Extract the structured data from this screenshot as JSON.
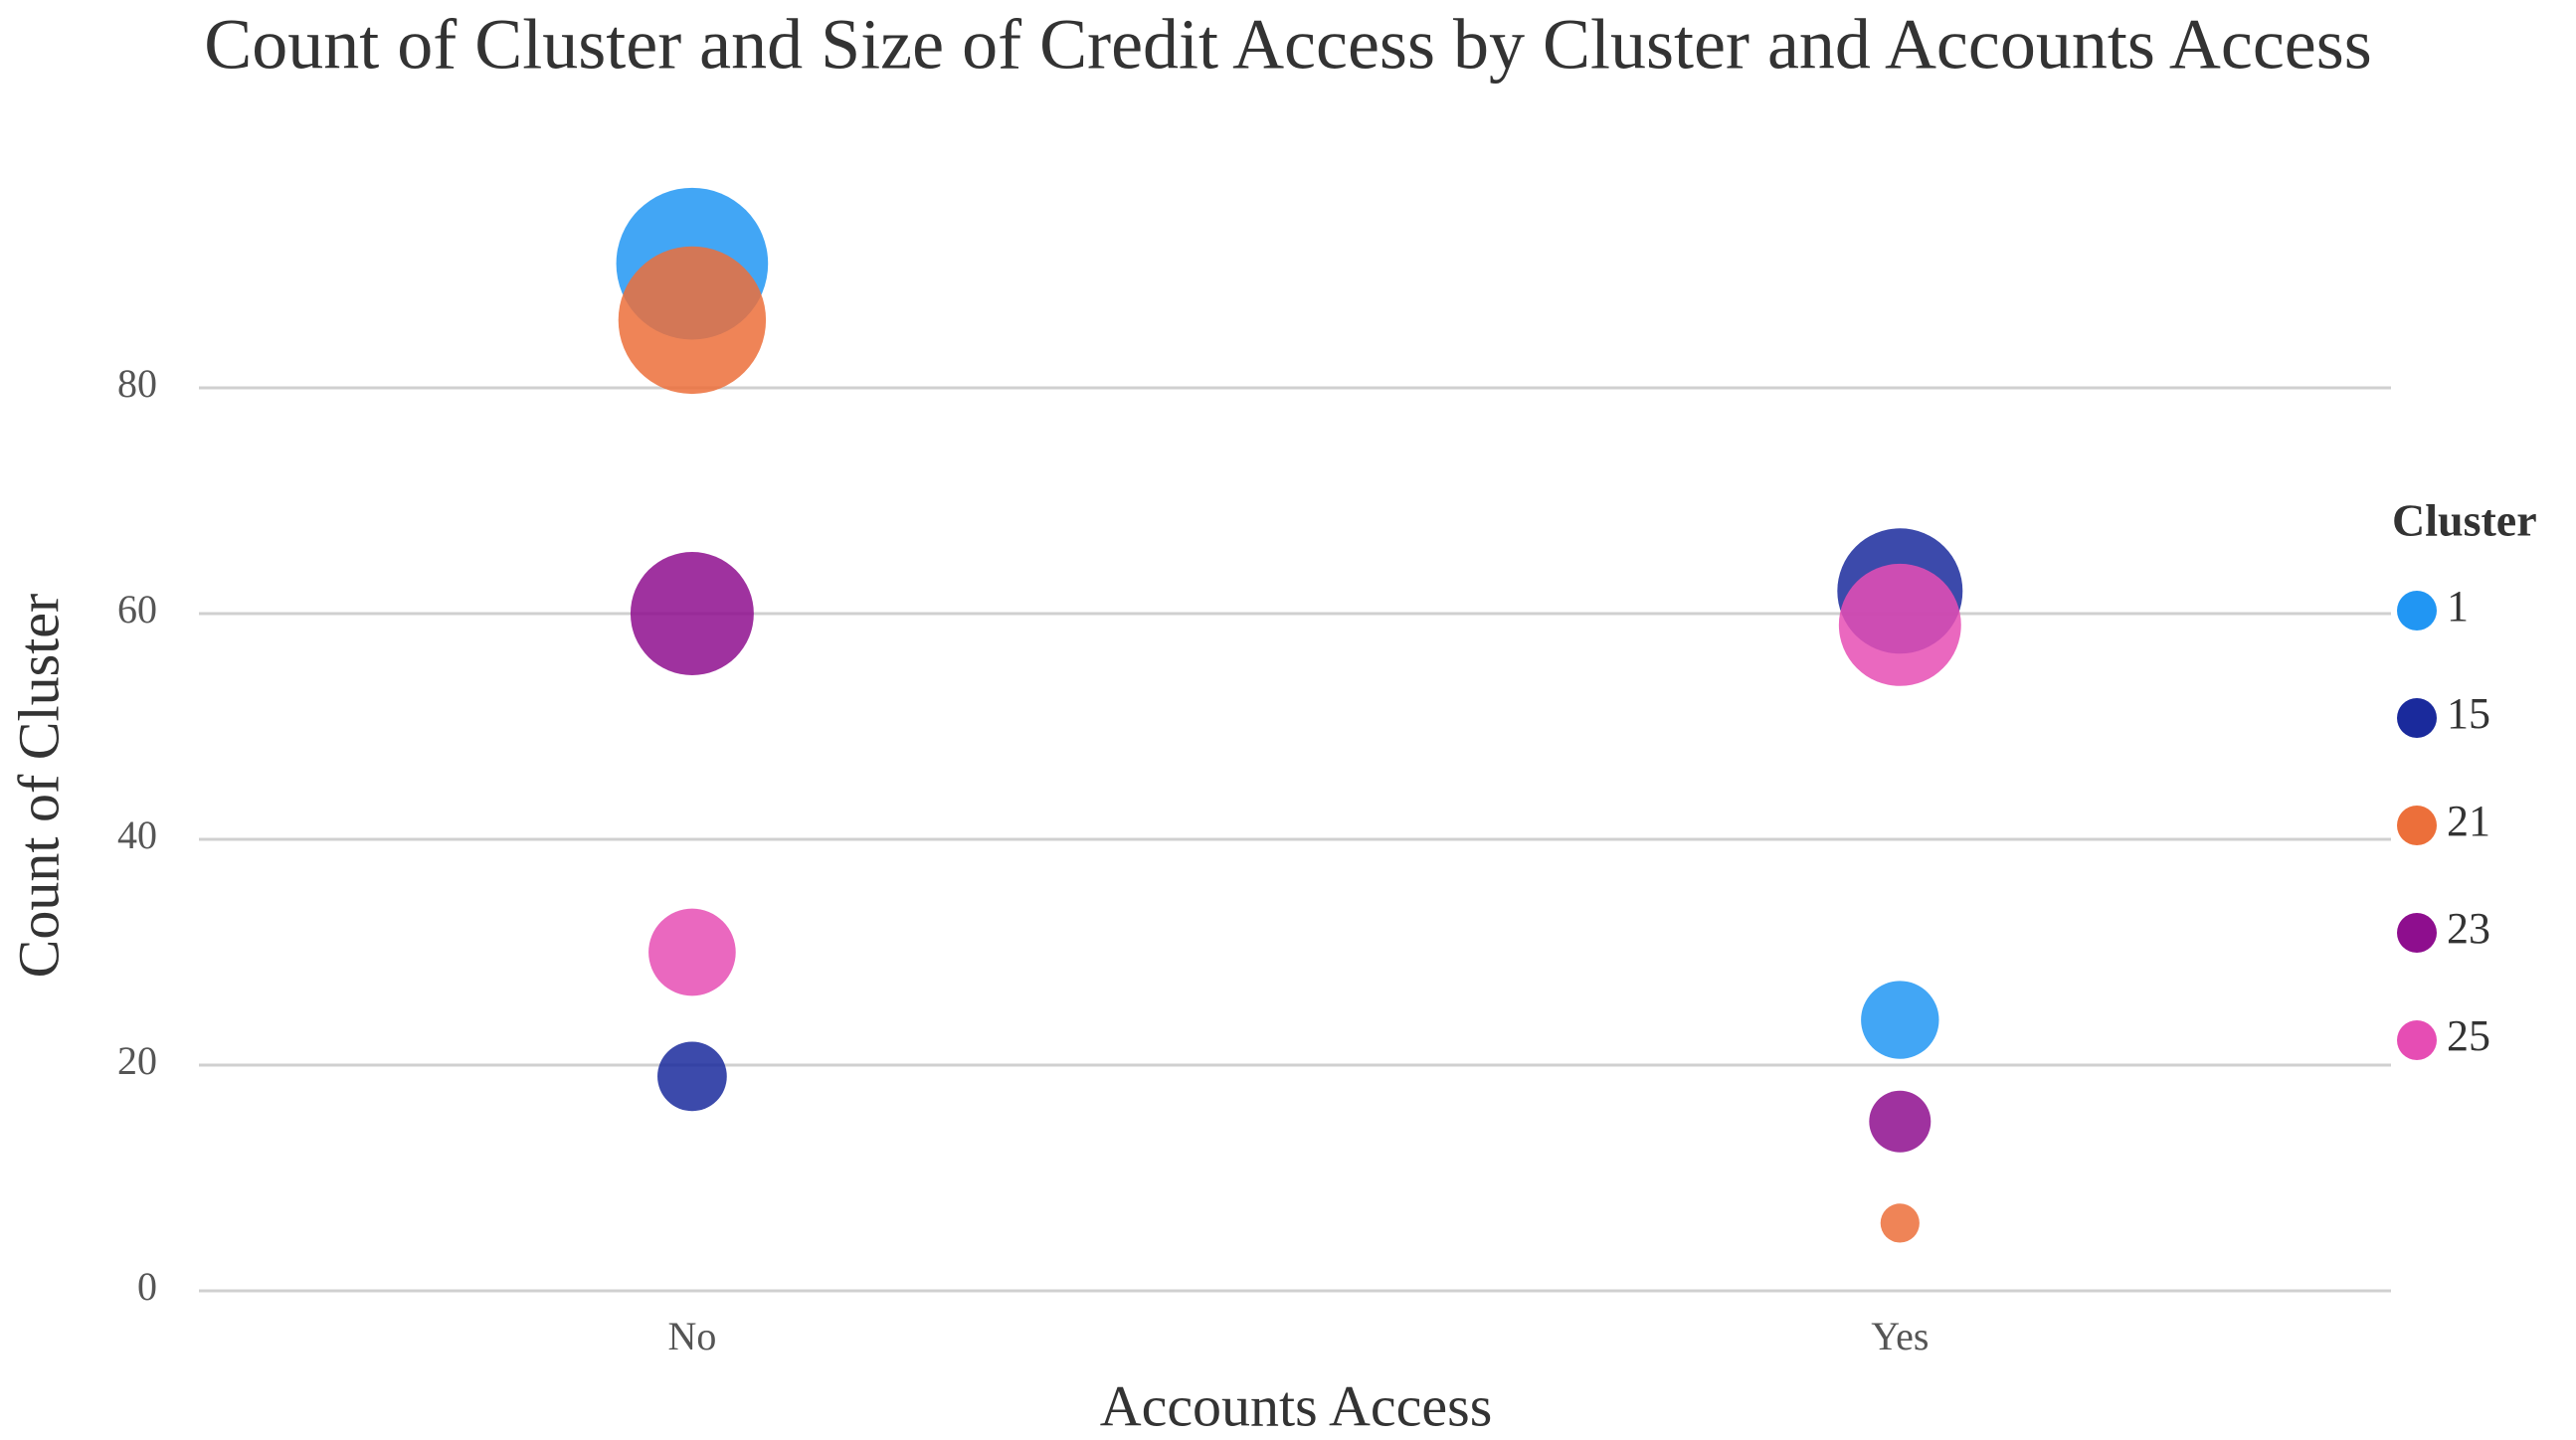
{
  "chart_data": {
    "type": "bubble",
    "title": "Count of Cluster and Size of Credit Access by Cluster and Accounts Access",
    "x_label": "Accounts Access",
    "y_label": "Count of Cluster",
    "categories": [
      "No",
      "Yes"
    ],
    "legend_title": "Cluster",
    "legend_position": "right",
    "grid": true,
    "ylim": [
      0,
      100
    ],
    "yticks": [
      0,
      20,
      40,
      60,
      80
    ],
    "series": [
      {
        "name": "1",
        "color": "#2196f3",
        "values": [
          91,
          24
        ],
        "sizes": [
          91,
          24
        ]
      },
      {
        "name": "15",
        "color": "#1a2a9c",
        "values": [
          19,
          62
        ],
        "sizes": [
          19,
          62
        ]
      },
      {
        "name": "21",
        "color": "#ec6f3a",
        "values": [
          86,
          6
        ],
        "sizes": [
          86,
          6
        ]
      },
      {
        "name": "23",
        "color": "#8e0e8e",
        "values": [
          60,
          15
        ],
        "sizes": [
          60,
          15
        ]
      },
      {
        "name": "25",
        "color": "#e64db4",
        "values": [
          30,
          59
        ],
        "sizes": [
          30,
          59
        ]
      }
    ]
  }
}
